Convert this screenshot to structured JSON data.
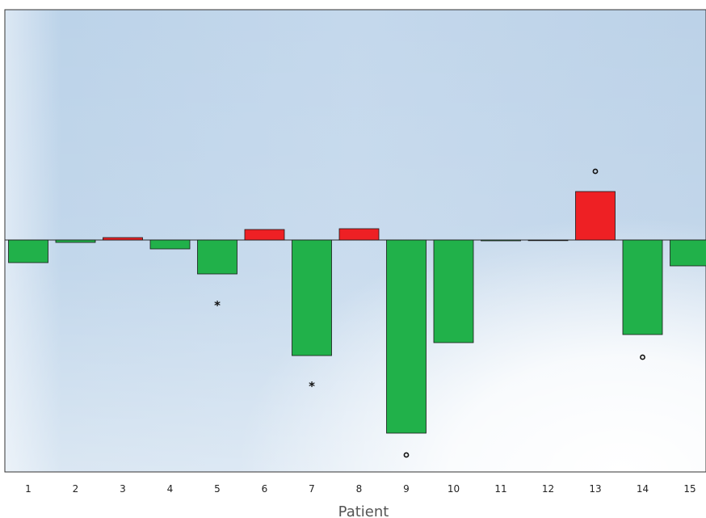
{
  "chart_data": {
    "type": "bar",
    "title": "",
    "xlabel": "Patient",
    "ylabel": "",
    "categories": [
      "1",
      "2",
      "3",
      "4",
      "5",
      "6",
      "7",
      "8",
      "9",
      "10",
      "11",
      "12",
      "13",
      "14",
      "15"
    ],
    "values": [
      -0.28,
      -0.03,
      0.03,
      -0.11,
      -0.42,
      0.13,
      -1.43,
      0.14,
      -2.39,
      -1.27,
      -0.01,
      0.0,
      0.6,
      -1.17,
      -0.32
    ],
    "ylim": [
      -2.87,
      2.85
    ],
    "grid": false,
    "colors": {
      "positive": "#ee2024",
      "negative": "#21b14a",
      "edge": "#1a1a1a"
    },
    "annotations": [
      {
        "category": "5",
        "symbol": "asterisk",
        "text": "*",
        "value": -0.8
      },
      {
        "category": "7",
        "symbol": "asterisk",
        "text": "*",
        "value": -1.8
      },
      {
        "category": "9",
        "symbol": "circle",
        "text": "o",
        "value": -2.66
      },
      {
        "category": "13",
        "symbol": "circle",
        "text": "o",
        "value": 0.85
      },
      {
        "category": "14",
        "symbol": "circle",
        "text": "o",
        "value": -1.45
      }
    ]
  }
}
